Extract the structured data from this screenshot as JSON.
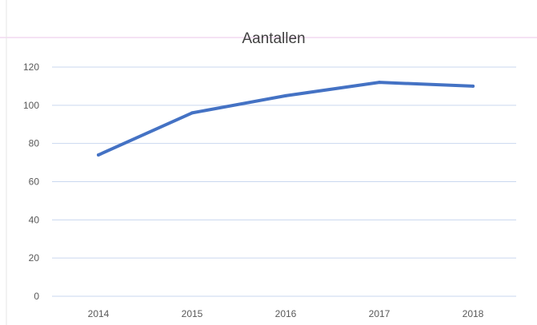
{
  "chart_data": {
    "type": "line",
    "title": "Aantallen",
    "xlabel": "",
    "ylabel": "",
    "categories": [
      "2014",
      "2015",
      "2016",
      "2017",
      "2018"
    ],
    "series": [
      {
        "values": [
          74,
          96,
          105,
          112,
          110
        ]
      }
    ],
    "ylim": [
      0,
      120
    ],
    "yticks": [
      0,
      20,
      40,
      60,
      80,
      100,
      120
    ],
    "grid": true,
    "legend": "none",
    "colors": {
      "line": "#4472C4",
      "grid": "#C9D7EF",
      "top_rule": "#EBC6EA",
      "tick_text": "#595959",
      "title_text": "#404040"
    }
  }
}
